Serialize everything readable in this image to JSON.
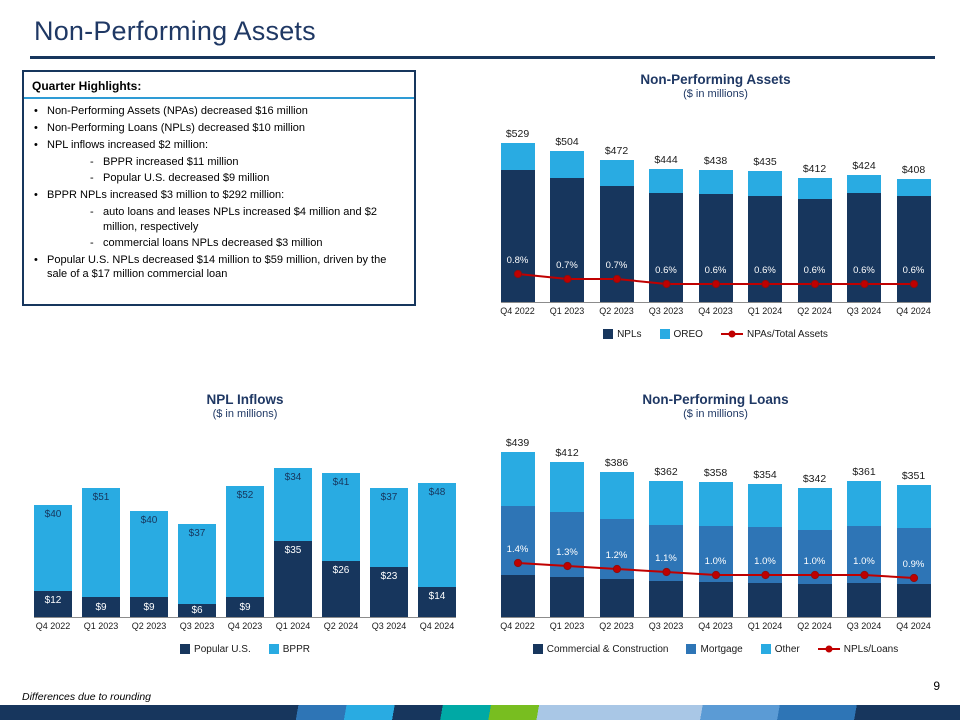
{
  "page": {
    "title": "Non-Performing Assets",
    "footnote": "Differences due to rounding",
    "page_number": "9"
  },
  "colors": {
    "navy": "#17365d",
    "medium_blue": "#2e75b6",
    "cyan": "#29abe2",
    "red": "#c00000",
    "title_navy": "#1f3864"
  },
  "highlights": {
    "heading": "Quarter Highlights:",
    "items": [
      {
        "level": 1,
        "text": "Non-Performing Assets (NPAs) decreased $16 million"
      },
      {
        "level": 1,
        "text": "Non-Performing Loans (NPLs) decreased $10 million"
      },
      {
        "level": 1,
        "text": "NPL inflows increased $2 million:"
      },
      {
        "level": 2,
        "text": "BPPR increased $11 million"
      },
      {
        "level": 2,
        "text": "Popular U.S. decreased $9 million"
      },
      {
        "level": 1,
        "text": "BPPR NPLs increased $3 million to $292 million:"
      },
      {
        "level": 2,
        "text": "auto loans and leases NPLs increased $4 million and $2 million, respectively"
      },
      {
        "level": 2,
        "text": "commercial loans NPLs decreased $3 million"
      },
      {
        "level": 1,
        "text": "Popular U.S. NPLs decreased $14 million to $59 million, driven by the sale of a $17 million commercial loan"
      }
    ]
  },
  "chart_data": [
    {
      "id": "non-performing-assets",
      "type": "bar",
      "stacked": true,
      "title": "Non-Performing Assets",
      "subtitle": "($ in millions)",
      "categories": [
        "Q4 2022",
        "Q1 2023",
        "Q2 2023",
        "Q3 2023",
        "Q4 2023",
        "Q1 2024",
        "Q2 2024",
        "Q3 2024",
        "Q4 2024"
      ],
      "series": [
        {
          "name": "NPLs",
          "color": "#17365d",
          "estimated": true,
          "values": [
            439,
            412,
            386,
            362,
            358,
            354,
            342,
            361,
            351
          ]
        },
        {
          "name": "OREO",
          "color": "#29abe2",
          "estimated": true,
          "values": [
            90,
            92,
            86,
            82,
            80,
            81,
            70,
            63,
            57
          ]
        }
      ],
      "totals": [
        529,
        504,
        472,
        444,
        438,
        435,
        412,
        424,
        408
      ],
      "totals_labels": [
        "$529",
        "$504",
        "$472",
        "$444",
        "$438",
        "$435",
        "$412",
        "$424",
        "$408"
      ],
      "line": {
        "name": "NPAs/Total Assets",
        "color": "#c00000",
        "values": [
          0.8,
          0.7,
          0.7,
          0.6,
          0.6,
          0.6,
          0.6,
          0.6,
          0.6
        ],
        "labels": [
          "0.8%",
          "0.7%",
          "0.7%",
          "0.6%",
          "0.6%",
          "0.6%",
          "0.6%",
          "0.6%",
          "0.6%"
        ]
      },
      "legend_position": "bottom"
    },
    {
      "id": "npl-inflows",
      "type": "bar",
      "stacked": true,
      "title": "NPL Inflows",
      "subtitle": "($ in millions)",
      "categories": [
        "Q4 2022",
        "Q1 2023",
        "Q2 2023",
        "Q3 2023",
        "Q4 2023",
        "Q1 2024",
        "Q2 2024",
        "Q3 2024",
        "Q4 2024"
      ],
      "series": [
        {
          "name": "Popular U.S.",
          "color": "#17365d",
          "values": [
            12,
            9,
            9,
            6,
            9,
            35,
            26,
            23,
            14
          ],
          "labels": [
            "$12",
            "$9",
            "$9",
            "$6",
            "$9",
            "$35",
            "$26",
            "$23",
            "$14"
          ],
          "label_color": "#ffffff"
        },
        {
          "name": "BPPR",
          "color": "#29abe2",
          "values": [
            40,
            51,
            40,
            37,
            52,
            34,
            41,
            37,
            48
          ],
          "labels": [
            "$40",
            "$51",
            "$40",
            "$37",
            "$52",
            "$34",
            "$41",
            "$37",
            "$48"
          ],
          "label_color": "#17365d"
        }
      ],
      "legend_position": "bottom"
    },
    {
      "id": "non-performing-loans",
      "type": "bar",
      "stacked": true,
      "title": "Non-Performing Loans",
      "subtitle": "($ in millions)",
      "categories": [
        "Q4 2022",
        "Q1 2023",
        "Q2 2023",
        "Q3 2023",
        "Q4 2023",
        "Q1 2024",
        "Q2 2024",
        "Q3 2024",
        "Q4 2024"
      ],
      "series": [
        {
          "name": "Commercial & Construction",
          "color": "#17365d",
          "estimated": true,
          "values": [
            110,
            105,
            100,
            95,
            92,
            90,
            88,
            90,
            88
          ]
        },
        {
          "name": "Mortgage",
          "color": "#2e75b6",
          "estimated": true,
          "values": [
            185,
            175,
            160,
            150,
            150,
            148,
            142,
            152,
            148
          ]
        },
        {
          "name": "Other",
          "color": "#29abe2",
          "estimated": true,
          "values": [
            144,
            132,
            126,
            117,
            116,
            116,
            112,
            119,
            115
          ]
        }
      ],
      "totals": [
        439,
        412,
        386,
        362,
        358,
        354,
        342,
        361,
        351
      ],
      "totals_labels": [
        "$439",
        "$412",
        "$386",
        "$362",
        "$358",
        "$354",
        "$342",
        "$361",
        "$351"
      ],
      "line": {
        "name": "NPLs/Loans",
        "color": "#c00000",
        "values": [
          1.4,
          1.3,
          1.2,
          1.1,
          1.0,
          1.0,
          1.0,
          1.0,
          0.9
        ],
        "labels": [
          "1.4%",
          "1.3%",
          "1.2%",
          "1.1%",
          "1.0%",
          "1.0%",
          "1.0%",
          "1.0%",
          "0.9%"
        ]
      },
      "legend_position": "bottom"
    }
  ]
}
